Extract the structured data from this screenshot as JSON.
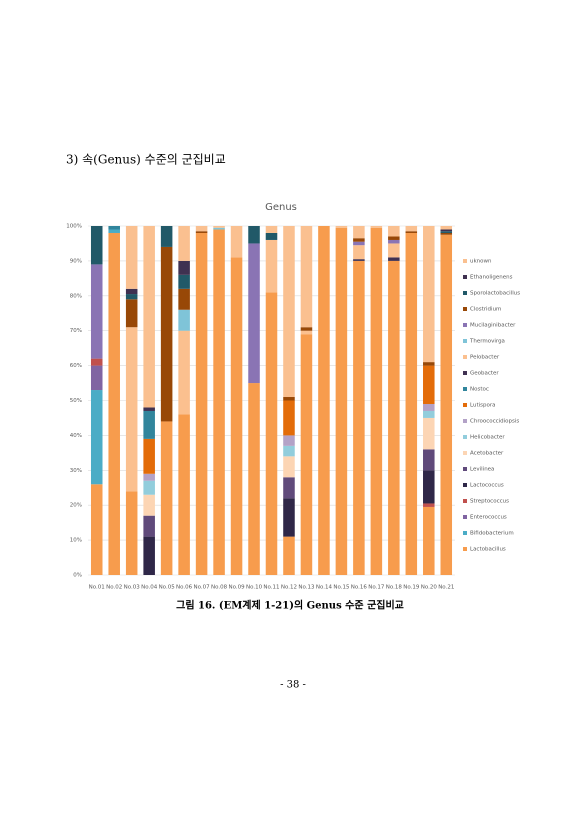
{
  "heading": "3) 속(Genus) 수준의 군집비교",
  "chart_data": {
    "type": "stacked-bar",
    "title": "Genus",
    "categories": [
      "No.01",
      "No.02",
      "No.03",
      "No.04",
      "No.05",
      "No.06",
      "No.07",
      "No.08",
      "No.09",
      "No.10",
      "No.11",
      "No.12",
      "No.13",
      "No.14",
      "No.15",
      "No.16",
      "No.17",
      "No.18",
      "No.19",
      "No.20",
      "No.21"
    ],
    "ylim": [
      0,
      100
    ],
    "yticks": [
      {
        "value": 0,
        "label": "0%"
      },
      {
        "value": 10,
        "label": "10%"
      },
      {
        "value": 20,
        "label": "20%"
      },
      {
        "value": 30,
        "label": "30%"
      },
      {
        "value": 40,
        "label": "40%"
      },
      {
        "value": 50,
        "label": "50%"
      },
      {
        "value": 60,
        "label": "60%"
      },
      {
        "value": 70,
        "label": "70%"
      },
      {
        "value": 80,
        "label": "80%"
      },
      {
        "value": 90,
        "label": "90%"
      },
      {
        "value": 100,
        "label": "100%"
      }
    ],
    "grid": true,
    "series": [
      {
        "name": "uknown",
        "color": "#fac090",
        "values": [
          0,
          0,
          18,
          52,
          0,
          10,
          1.5,
          0.5,
          9,
          0,
          2,
          49,
          29,
          0,
          0.5,
          3.5,
          0.5,
          3,
          1.5,
          39,
          1
        ]
      },
      {
        "name": "Ethanoligenens",
        "color": "#3f3151",
        "values": [
          0,
          0,
          1.5,
          0,
          0,
          4,
          0,
          0,
          0,
          0,
          0,
          0,
          0,
          0,
          0,
          0,
          0,
          0,
          0,
          0,
          0.5
        ]
      },
      {
        "name": "Sporolactobacillus",
        "color": "#215968",
        "values": [
          11,
          0,
          1.5,
          0,
          6,
          4,
          0,
          0,
          0,
          5,
          2,
          0,
          0,
          0,
          0,
          0,
          0,
          0,
          0,
          0,
          0.5
        ]
      },
      {
        "name": "Clostridium",
        "color": "#984807",
        "values": [
          0,
          0,
          8,
          0,
          50,
          6,
          0.5,
          0,
          0,
          0,
          0,
          1,
          1,
          0,
          0,
          1,
          0,
          1,
          0.5,
          1,
          0.5
        ]
      },
      {
        "name": "Mucilaginibacter",
        "color": "#8a74b4",
        "values": [
          27,
          0,
          0,
          0,
          0,
          0,
          0,
          0,
          0,
          40,
          0,
          0,
          0,
          0,
          0,
          1,
          0,
          1,
          0,
          0,
          0
        ]
      },
      {
        "name": "Thermovirga",
        "color": "#7fc4d8",
        "values": [
          0,
          0,
          0,
          0,
          0,
          6,
          0,
          0.5,
          0,
          0,
          0,
          0,
          0,
          0,
          0,
          0,
          0,
          0,
          0,
          0,
          0
        ]
      },
      {
        "name": "Pelobacter",
        "color": "#fbc08f",
        "values": [
          0,
          0,
          47,
          0,
          0,
          24,
          0,
          0,
          0,
          0,
          15,
          0,
          1,
          0,
          0,
          4,
          0,
          4,
          0,
          0,
          0
        ]
      },
      {
        "name": "Geobacter",
        "color": "#403152",
        "values": [
          0,
          0,
          0,
          1,
          0,
          0,
          0,
          0,
          0,
          0,
          0,
          0,
          0,
          0,
          0,
          0.5,
          0,
          1,
          0,
          0,
          0
        ]
      },
      {
        "name": "Nostoc",
        "color": "#31859c",
        "values": [
          0,
          1,
          0,
          8,
          0,
          0,
          0,
          0,
          0,
          0,
          0,
          0,
          0,
          0,
          0,
          0,
          0,
          0,
          0,
          0,
          0
        ]
      },
      {
        "name": "Lutispora",
        "color": "#e36c09",
        "values": [
          0,
          0,
          0,
          10,
          0,
          0,
          0,
          0,
          0,
          0,
          0,
          10,
          0,
          0,
          0,
          0,
          0,
          0,
          0,
          11,
          0
        ]
      },
      {
        "name": "Chroococcidiopsis",
        "color": "#b3a2c7",
        "values": [
          0,
          0,
          0,
          2,
          0,
          0,
          0,
          0,
          0,
          0,
          0,
          3,
          0,
          0,
          0,
          0,
          0,
          0,
          0,
          2,
          0
        ]
      },
      {
        "name": "Helicobacter",
        "color": "#92cddc",
        "values": [
          0,
          0,
          0,
          4,
          0,
          0,
          0,
          0,
          0,
          0,
          0,
          3,
          0,
          0,
          0,
          0,
          0,
          0,
          0,
          2,
          0
        ]
      },
      {
        "name": "Acetobacter",
        "color": "#fcd5b4",
        "values": [
          0,
          0,
          0,
          6,
          0,
          0,
          0,
          0,
          0,
          0,
          0,
          6,
          0,
          0,
          0,
          0,
          0,
          0,
          0,
          9,
          0
        ]
      },
      {
        "name": "Levilinea",
        "color": "#604a7b",
        "values": [
          0,
          0,
          0,
          6,
          0,
          0,
          0,
          0,
          0,
          0,
          0,
          6,
          0,
          0,
          0,
          0,
          0,
          0,
          0,
          6,
          0
        ]
      },
      {
        "name": "Lactococcus",
        "color": "#2f2748",
        "values": [
          0,
          0,
          0,
          11,
          0,
          0,
          0,
          0,
          0,
          0,
          0,
          11,
          0,
          0,
          0,
          0,
          0,
          0,
          0,
          9.5,
          0
        ]
      },
      {
        "name": "Streptococcus",
        "color": "#c0504d",
        "values": [
          2,
          0,
          0,
          0,
          0,
          0,
          0,
          0,
          0,
          0,
          0,
          0,
          0,
          0,
          0,
          0,
          0,
          0,
          0,
          1,
          0
        ]
      },
      {
        "name": "Enterococcus",
        "color": "#8064a2",
        "values": [
          7,
          0,
          0,
          0,
          0,
          0,
          0,
          0,
          0,
          0,
          0,
          0,
          0,
          0,
          0,
          0,
          0,
          0,
          0,
          0,
          0
        ]
      },
      {
        "name": "Bifidobacterium",
        "color": "#4bacc6",
        "values": [
          27,
          1,
          0,
          0,
          0,
          0,
          0,
          0,
          0,
          0,
          0,
          0,
          0,
          0,
          0,
          0,
          0,
          0,
          0,
          0,
          0
        ]
      },
      {
        "name": "Lactobacillus",
        "color": "#f79c4d",
        "values": [
          26,
          98,
          24,
          0,
          44,
          46,
          98,
          99,
          91,
          55,
          81,
          11,
          69,
          100,
          99.5,
          90,
          99.5,
          90,
          98,
          19.5,
          97.5
        ]
      }
    ]
  },
  "caption": "그림 16. (EM계제 1-21)의 Genus 수준 군집비교",
  "page_number": "- 38 -"
}
